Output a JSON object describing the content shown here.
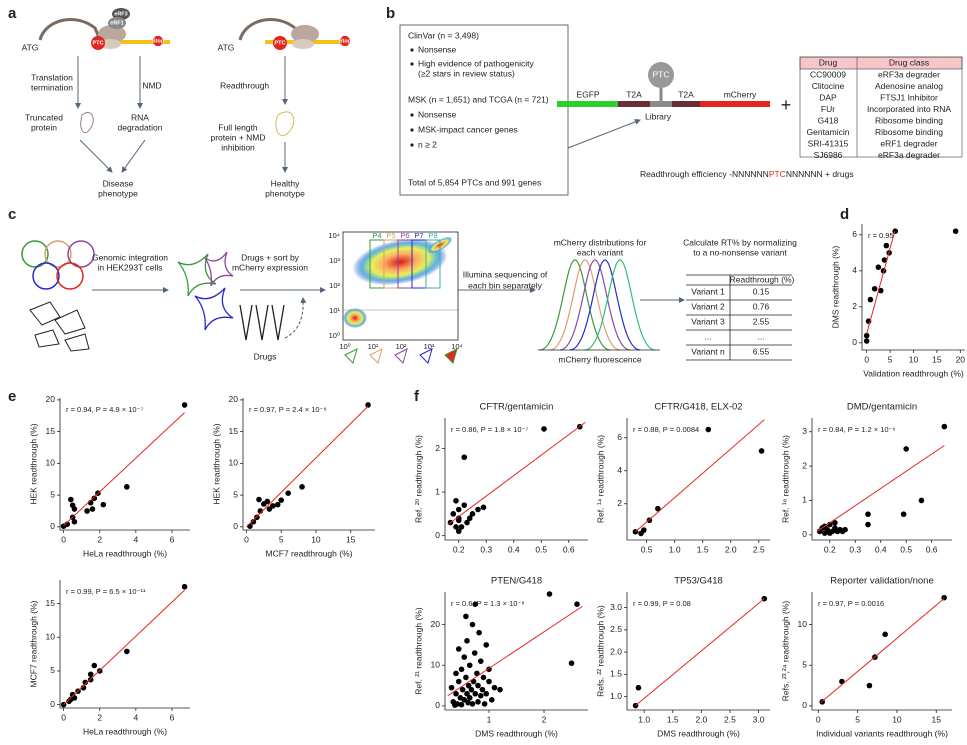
{
  "panel_labels": [
    "a",
    "b",
    "c",
    "d",
    "e",
    "f"
  ],
  "a": {
    "left": {
      "atg": "ATG",
      "ptc": "PTC",
      "stop": "Stop",
      "erf3": "eRF3",
      "erf1": "eRF1",
      "translation_termination": [
        "Translation",
        "termination"
      ],
      "nmd": "NMD",
      "truncated_protein": [
        "Truncated",
        "protein"
      ],
      "rna_degradation": [
        "RNA",
        "degradation"
      ],
      "disease_phenotype": [
        "Disease",
        "phenotype"
      ]
    },
    "right": {
      "atg": "ATG",
      "ptc": "PTC",
      "stop": "Stop",
      "readthrough": "Readthrough",
      "full_length": [
        "Full length",
        "protein + NMD",
        "inhibition"
      ],
      "healthy_phenotype": [
        "Healthy",
        "phenotype"
      ]
    }
  },
  "b": {
    "box_lines": [
      "ClinVar (n = 3,498)",
      "Nonsense",
      "High evidence of pathogenicity",
      "(≥2 stars in review status)",
      "MSK (n = 1,651) and TCGA (n = 721)",
      "Nonsense",
      "MSK-impact cancer genes",
      "n ≥ 2",
      "Total of 5,854 PTCs and 991 genes"
    ],
    "construct": {
      "egfp": "EGFP",
      "t2a_1": "T2A",
      "ptc": "PTC",
      "t2a_2": "T2A",
      "mcherry": "mCherry",
      "library": "Library"
    },
    "plus": "+",
    "drug_table": {
      "header": [
        "Drug",
        "Drug class"
      ],
      "rows": [
        [
          "CC90009",
          "eRF3a degrader"
        ],
        [
          "Clitocine",
          "Adenosine analog"
        ],
        [
          "DAP",
          "FTSJ1 Inhibitor"
        ],
        [
          "FUr",
          "Incorporated into RNA"
        ],
        [
          "G418",
          "Ribosome binding"
        ],
        [
          "Gentamicin",
          "Ribosome binding"
        ],
        [
          "SRI-41315",
          "eRF1 degrader"
        ],
        [
          "SJ6986",
          "eRF3a degrader"
        ]
      ]
    },
    "caption": [
      "Readthrough efficiency -NNNNNN",
      "PTC",
      "NNNNNN + drugs"
    ]
  },
  "c": {
    "integration": [
      "Genomic integration",
      "in HEK293T cells"
    ],
    "sort": [
      "Drugs + sort by",
      "mCherry expression"
    ],
    "drugs": "Drugs",
    "gates": [
      "P4",
      "P5",
      "P6",
      "P7",
      "P8"
    ],
    "flow_y_ticks": [
      "10⁴",
      "10³",
      "10²",
      "10¹",
      "10⁰"
    ],
    "flow_x_ticks": [
      "10⁰",
      "10¹",
      "10²",
      "10³",
      "10⁴"
    ],
    "sequencing": [
      "Illumina sequencing of",
      "each bin separately"
    ],
    "distributions": [
      "mCherry distributions for",
      "each variant"
    ],
    "fluorescence": "mCherry fluorescence",
    "calculate": [
      "Calculate RT% by normalizing",
      "to a no-nonsense variant"
    ],
    "table": {
      "header": "Readthrough (%)",
      "rows": [
        [
          "Variant 1",
          0.15
        ],
        [
          "Variant 2",
          0.76
        ],
        [
          "Variant 3",
          2.55
        ],
        [
          "...",
          "..."
        ],
        [
          "Variant n",
          6.55
        ]
      ]
    }
  },
  "chart_data": [
    {
      "type": "scatter",
      "annotation": "r = 0.95",
      "xlabel": "Validation readthrough (%)",
      "ylabel": "DMS readthrough (%)",
      "xlim": [
        -1,
        21
      ],
      "ylim": [
        -0.4,
        6.6
      ],
      "xticks": [
        0,
        5,
        10,
        15,
        20
      ],
      "yticks": [
        0,
        2,
        4,
        6
      ],
      "x": [
        0,
        0,
        0.4,
        0.8,
        1.7,
        2.5,
        3,
        3.6,
        3.8,
        4.2,
        4.8,
        6.1,
        19
      ],
      "y": [
        0.1,
        0.4,
        1.2,
        2.4,
        3.0,
        4.2,
        2.9,
        4.0,
        4.6,
        5.4,
        5.0,
        6.2,
        6.2
      ],
      "color": "#000000",
      "fit_color": "#e3261f",
      "fit": {
        "x": [
          0,
          6
        ],
        "y": [
          0.5,
          6.2
        ]
      }
    },
    {
      "type": "scatter",
      "annotation": "r = 0.94, P = 4.9 × 10⁻⁷",
      "xlabel": "HeLa readthrough (%)",
      "ylabel": "HEK readthrough (%)",
      "xlim": [
        -0.2,
        7
      ],
      "ylim": [
        -0.5,
        20.3
      ],
      "xticks": [
        0,
        2,
        4,
        6
      ],
      "yticks": [
        0,
        5,
        10,
        15,
        20
      ],
      "x": [
        0,
        0.2,
        0.4,
        0.5,
        0.6,
        0.5,
        0.6,
        1.3,
        1.5,
        1.7,
        1.9,
        2.2,
        1.6,
        3.5,
        6.7
      ],
      "y": [
        0.1,
        0.4,
        4.3,
        3.4,
        2.8,
        1.5,
        0.8,
        2.5,
        3.8,
        4.5,
        5.3,
        3.5,
        2.8,
        6.3,
        19.2
      ],
      "color": "#000000",
      "fit_color": "#e3261f",
      "fit": {
        "x": [
          0,
          6.7
        ],
        "y": [
          0.2,
          18
        ]
      }
    },
    {
      "type": "scatter",
      "annotation": "r = 0.97, P = 2.4 × 10⁻⁸",
      "xlabel": "MCF7 readthrough (%)",
      "ylabel": "HEK readthrough (%)",
      "xlim": [
        -0.5,
        18.5
      ],
      "ylim": [
        -0.5,
        20.3
      ],
      "xticks": [
        0,
        5,
        10,
        15
      ],
      "yticks": [
        0,
        5,
        10,
        15,
        20
      ],
      "x": [
        0.5,
        1,
        1.5,
        2,
        2.5,
        3,
        3.3,
        4.5,
        5,
        6,
        8,
        17.5,
        3.8,
        1.8
      ],
      "y": [
        0.1,
        0.8,
        1.5,
        2.5,
        3.6,
        4.0,
        2.8,
        3.5,
        4.2,
        5.3,
        6.3,
        19.2,
        3.3,
        4.3
      ],
      "color": "#000000",
      "fit_color": "#e3261f",
      "fit": {
        "x": [
          0,
          17.5
        ],
        "y": [
          0,
          19
        ]
      }
    },
    {
      "type": "scatter",
      "annotation": "r = 0.99, P = 6.5 × 10⁻¹¹",
      "xlabel": "HeLa readthrough (%)",
      "ylabel": "MCF7 readthrough (%)",
      "xlim": [
        -0.2,
        7
      ],
      "ylim": [
        -0.5,
        18.5
      ],
      "xticks": [
        0,
        2,
        4,
        6
      ],
      "yticks": [
        0,
        5,
        10,
        15
      ],
      "x": [
        0,
        0.3,
        0.5,
        0.6,
        0.8,
        1.1,
        1.2,
        1.5,
        1.7,
        2.0,
        1.5,
        3.5,
        6.7,
        0.4
      ],
      "y": [
        0,
        0.5,
        1.5,
        1.0,
        2.0,
        2.5,
        3.3,
        4.5,
        5.8,
        5.0,
        3.7,
        7.9,
        17.5,
        0.8
      ],
      "color": "#000000",
      "fit_color": "#e3261f",
      "fit": {
        "x": [
          0,
          6.7
        ],
        "y": [
          0,
          17
        ]
      }
    },
    {
      "type": "scatter",
      "title": "CFTR/gentamicin",
      "annotation": "r = 0.86, P = 1.8 × 10⁻⁷",
      "ylabel": "Ref. ²⁰ readthrough (%)",
      "xlim": [
        0.15,
        0.67
      ],
      "ylim": [
        -0.1,
        2.7
      ],
      "xticks": [
        0.2,
        0.3,
        0.4,
        0.5,
        0.6
      ],
      "yticks": [
        0,
        1,
        2
      ],
      "x": [
        0.17,
        0.18,
        0.19,
        0.2,
        0.2,
        0.21,
        0.22,
        0.22,
        0.23,
        0.24,
        0.25,
        0.2,
        0.19,
        0.27,
        0.29,
        0.51,
        0.64,
        0.2
      ],
      "y": [
        0.3,
        0.5,
        0.8,
        0.6,
        0.4,
        0.2,
        1.8,
        0.7,
        0.3,
        0.4,
        0.5,
        0.1,
        0.2,
        0.6,
        0.65,
        2.45,
        2.5,
        0.35
      ],
      "color": "#000000",
      "fit_color": "#e3261f",
      "fit": {
        "x": [
          0.16,
          0.66
        ],
        "y": [
          0.25,
          2.6
        ]
      }
    },
    {
      "type": "scatter",
      "title": "CFTR/G418, ELX-02",
      "annotation": "r = 0.88, P = 0.0084",
      "ylabel": "Ref. ¹⁴ readthrough (%)",
      "xlim": [
        0.15,
        2.7
      ],
      "ylim": [
        -0.2,
        7.2
      ],
      "xticks": [
        0.5,
        {
          "value": 1,
          "label": "1.0"
        },
        1.5,
        {
          "value": 2,
          "label": "2.0"
        },
        2.5
      ],
      "yticks": [
        2,
        4,
        6
      ],
      "x": [
        0.3,
        0.4,
        0.45,
        0.55,
        0.7,
        1.6,
        2.55
      ],
      "y": [
        0.3,
        0.2,
        0.4,
        1.0,
        1.7,
        6.5,
        5.2
      ],
      "color": "#000000",
      "fit_color": "#e3261f",
      "fit": {
        "x": [
          0.3,
          2.6
        ],
        "y": [
          0.3,
          7.1
        ]
      }
    },
    {
      "type": "scatter",
      "title": "DMD/gentamicin",
      "annotation": "r = 0.84, P = 1.2 × 10⁻⁶",
      "ylabel": "Ref. ¹⁶ readthrough (%)",
      "xlim": [
        0.13,
        0.68
      ],
      "ylim": [
        -0.15,
        3.4
      ],
      "xticks": [
        0.2,
        0.3,
        0.4,
        0.5,
        0.6
      ],
      "yticks": [
        0,
        1,
        2,
        3
      ],
      "x": [
        0.16,
        0.17,
        0.18,
        0.19,
        0.2,
        0.21,
        0.22,
        0.23,
        0.24,
        0.25,
        0.26,
        0.2,
        0.18,
        0.35,
        0.35,
        0.49,
        0.5,
        0.56,
        0.65,
        0.22
      ],
      "y": [
        0.1,
        0.2,
        0.05,
        0.15,
        0.3,
        0.1,
        0.2,
        0.1,
        0.15,
        0.1,
        0.15,
        0.05,
        0.25,
        0.6,
        0.3,
        0.6,
        2.5,
        1.0,
        3.15,
        0.35
      ],
      "color": "#000000",
      "fit_color": "#e3261f",
      "fit": {
        "x": [
          0.15,
          0.65
        ],
        "y": [
          0.1,
          2.6
        ]
      }
    },
    {
      "type": "scatter",
      "title": "PTEN/G418",
      "annotation": "r = 0.6, P = 1.3 × 10⁻⁸",
      "xlabel": "DMS readthrough (%)",
      "ylabel": "Ref. ²¹ readthrough (%)",
      "xlim": [
        0.2,
        2.8
      ],
      "ylim": [
        -1,
        28
      ],
      "xticks": [
        1,
        2
      ],
      "yticks": [
        0,
        10,
        20
      ],
      "x": [
        0.35,
        0.4,
        0.42,
        0.45,
        0.48,
        0.5,
        0.5,
        0.52,
        0.55,
        0.55,
        0.58,
        0.6,
        0.6,
        0.62,
        0.63,
        0.65,
        0.65,
        0.68,
        0.7,
        0.7,
        0.72,
        0.74,
        0.75,
        0.75,
        0.78,
        0.8,
        0.8,
        0.82,
        0.85,
        0.85,
        0.88,
        0.9,
        0.92,
        0.95,
        0.95,
        1.0,
        1.0,
        1.05,
        1.1,
        1.2,
        0.58,
        0.45,
        0.4,
        2.1,
        2.5,
        2.6,
        0.32,
        0.38
      ],
      "y": [
        1,
        3,
        0.5,
        6,
        2,
        9,
        0.3,
        4,
        12,
        1.5,
        7,
        3,
        16,
        0.8,
        5,
        10,
        2,
        4,
        20,
        0.5,
        6,
        13,
        25,
        3,
        8,
        1,
        5,
        18,
        2.5,
        11,
        4,
        7,
        0.5,
        15,
        3,
        6,
        9,
        1.5,
        4.5,
        4,
        22,
        14,
        8,
        27.5,
        10.5,
        25,
        4.5,
        0.2
      ],
      "color": "#000000",
      "fit_color": "#e3261f",
      "fit": {
        "x": [
          0.25,
          2.7
        ],
        "y": [
          2.5,
          24.5
        ]
      }
    },
    {
      "type": "scatter",
      "title": "TP53/G418",
      "annotation": "r = 0.99, P = 0.08",
      "xlabel": "DMS readthrough (%)",
      "ylabel": "Refs. ²² readthrough (%)",
      "xlim": [
        0.7,
        3.2
      ],
      "ylim": [
        0.7,
        3.35
      ],
      "xticks": [
        {
          "value": 1,
          "label": "1.0"
        },
        1.5,
        {
          "value": 2,
          "label": "2.0"
        },
        2.5,
        {
          "value": 3,
          "label": "3.0"
        }
      ],
      "yticks": [
        {
          "value": 1,
          "label": "1.0"
        },
        1.5,
        {
          "value": 2,
          "label": "2.0"
        },
        2.5,
        {
          "value": 3,
          "label": "3.0"
        }
      ],
      "x": [
        0.85,
        0.9,
        3.1
      ],
      "y": [
        0.8,
        1.2,
        3.2
      ],
      "color": "#000000",
      "fit_color": "#e3261f",
      "fit": {
        "x": [
          0.85,
          3.1
        ],
        "y": [
          0.8,
          3.2
        ]
      }
    },
    {
      "type": "scatter",
      "title": "Reporter validation/none",
      "annotation": "r = 0.97, P = 0.0016",
      "xlabel": "Individual variants readthrough (%)",
      "ylabel": "Refs. ²³,²⁴ readthrough (%)",
      "xlim": [
        -0.8,
        17
      ],
      "ylim": [
        -0.5,
        14
      ],
      "xticks": [
        0,
        5,
        10,
        15
      ],
      "yticks": [
        0,
        5,
        10
      ],
      "x": [
        0.5,
        3,
        6.5,
        7.2,
        8.5,
        16
      ],
      "y": [
        0.5,
        3,
        2.5,
        6,
        8.8,
        13.3
      ],
      "color": "#000000",
      "fit_color": "#e3261f",
      "fit": {
        "x": [
          0.3,
          16
        ],
        "y": [
          0.4,
          13.2
        ]
      }
    }
  ]
}
